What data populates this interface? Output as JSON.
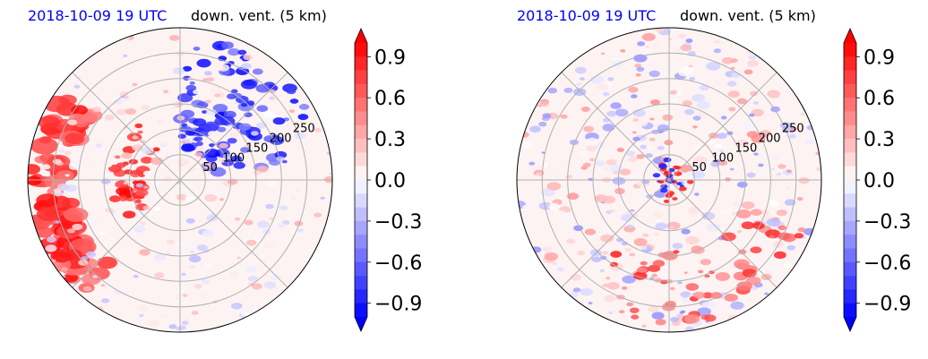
{
  "panels": [
    {
      "title_left": "2018-10-09 19 UTC",
      "title_right": "down. vent. (5 km)"
    },
    {
      "title_left": "2018-10-09 19 UTC",
      "title_right": "down. vent. (5 km)"
    }
  ],
  "colors": {
    "title_date": "#0000ff",
    "positive": "#ff0000",
    "negative": "#0000ff",
    "grid": "#b0b0b0"
  },
  "chart_data": [
    {
      "type": "heatmap",
      "projection": "polar",
      "title": "2018-10-09 19 UTC   down. vent. (5 km)",
      "radial_ticks": [
        "50",
        "100",
        "150",
        "200",
        "250"
      ],
      "radial_values": [
        50,
        100,
        150,
        200,
        250
      ],
      "rlim": [
        0,
        300
      ],
      "grid": true,
      "colorbar": {
        "ticks": [
          "0.9",
          "0.6",
          "0.3",
          "0.0",
          "−0.3",
          "−0.6",
          "−0.9"
        ],
        "values": [
          0.9,
          0.6,
          0.3,
          0.0,
          -0.3,
          -0.6,
          -0.9
        ],
        "range": [
          -1.0,
          1.0
        ],
        "colormap": "blue-white-red",
        "extend": "both"
      }
    },
    {
      "type": "heatmap",
      "projection": "polar",
      "title": "2018-10-09 19 UTC   down. vent. (5 km)",
      "radial_ticks": [
        "50",
        "100",
        "150",
        "200",
        "250"
      ],
      "radial_values": [
        50,
        100,
        150,
        200,
        250
      ],
      "rlim": [
        0,
        300
      ],
      "grid": true,
      "colorbar": {
        "ticks": [
          "0.9",
          "0.6",
          "0.3",
          "0.0",
          "−0.3",
          "−0.6",
          "−0.9"
        ],
        "values": [
          0.9,
          0.6,
          0.3,
          0.0,
          -0.3,
          -0.6,
          -0.9
        ],
        "range": [
          -1.0,
          1.0
        ],
        "colormap": "blue-white-red",
        "extend": "both"
      }
    }
  ]
}
